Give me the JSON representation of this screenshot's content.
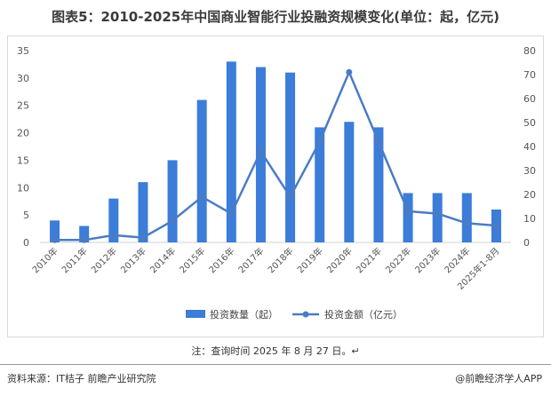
{
  "title": "图表5：2010-2025年中国商业智能行业投融资规模变化(单位：起，亿元)",
  "note": "注：查询时间 2025 年 8 月 27 日。↵",
  "footer": {
    "source": "资料来源：IT桔子 前瞻产业研究院",
    "brand": "@前瞻经济学人APP"
  },
  "colors": {
    "bar": "#3b7dd8",
    "line": "#4a7cc4"
  },
  "chart_data": {
    "type": "bar",
    "categories": [
      "2010年",
      "2011年",
      "2012年",
      "2013年",
      "2014年",
      "2015年",
      "2016年",
      "2017年",
      "2018年",
      "2019年",
      "2020年",
      "2021年",
      "2022年",
      "2023年",
      "2024年",
      "2025年1-8月"
    ],
    "series": [
      {
        "name": "投资数量（起）",
        "type": "bar",
        "axis": "left",
        "values": [
          4,
          3,
          8,
          11,
          15,
          26,
          33,
          32,
          31,
          21,
          22,
          21,
          9,
          9,
          9,
          6
        ]
      },
      {
        "name": "投资金额（亿元）",
        "type": "line",
        "axis": "right",
        "values": [
          1,
          1,
          3,
          2,
          9,
          19,
          12,
          38,
          19,
          42,
          71,
          42,
          13,
          12,
          8,
          7
        ]
      }
    ],
    "ylim_left": [
      0,
      35
    ],
    "yticks_left": [
      0,
      5,
      10,
      15,
      20,
      25,
      30,
      35
    ],
    "ylim_right": [
      0,
      80
    ],
    "yticks_right": [
      0,
      10,
      20,
      30,
      40,
      50,
      60,
      70,
      80
    ],
    "grid": false,
    "legend": "bottom"
  }
}
